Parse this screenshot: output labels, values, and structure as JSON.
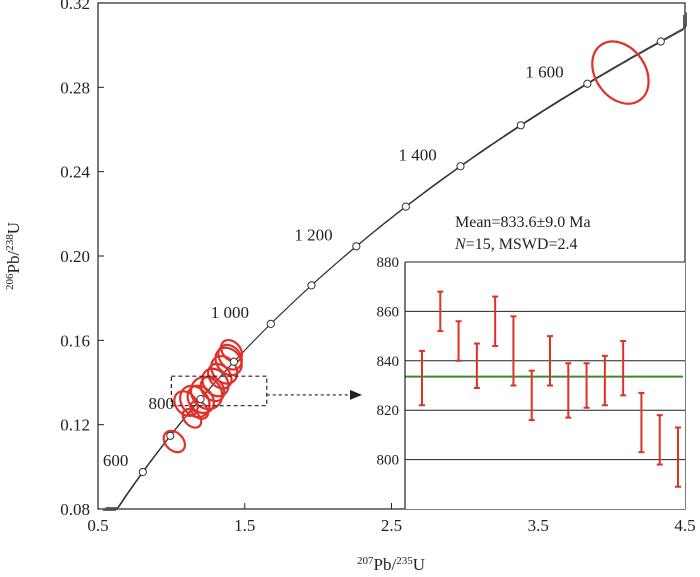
{
  "chart_data": {
    "type": "concordia",
    "main": {
      "xlabel": {
        "sup": "207",
        "base": "Pb/",
        "sup2": "235",
        "base2": "U"
      },
      "ylabel": {
        "sup": "206",
        "base": "Pb/",
        "sup2": "238",
        "base2": "U"
      },
      "xlim": [
        0.5,
        4.5
      ],
      "ylim": [
        0.08,
        0.32
      ],
      "xticks": [
        0.5,
        1.5,
        2.5,
        3.5,
        4.5
      ],
      "xtick_labels": [
        "0.5",
        "1.5",
        "2.5",
        "3.5",
        "4.5"
      ],
      "yticks": [
        0.08,
        0.12,
        0.16,
        0.2,
        0.24,
        0.28,
        0.32
      ],
      "ytick_labels": [
        "0.08",
        "0.12",
        "0.16",
        "0.20",
        "0.24",
        "0.28",
        "0.32"
      ],
      "concordia_markers": [
        {
          "age": 600,
          "label": "600"
        },
        {
          "age": 700,
          "label": ""
        },
        {
          "age": 800,
          "label": "800"
        },
        {
          "age": 900,
          "label": ""
        },
        {
          "age": 1000,
          "label": "1 000"
        },
        {
          "age": 1100,
          "label": ""
        },
        {
          "age": 1200,
          "label": "1 200"
        },
        {
          "age": 1300,
          "label": ""
        },
        {
          "age": 1400,
          "label": "1 400"
        },
        {
          "age": 1500,
          "label": ""
        },
        {
          "age": 1600,
          "label": "1 600"
        },
        {
          "age": 1700,
          "label": ""
        }
      ],
      "ellipses": [
        {
          "x": 4.06,
          "y": 0.287,
          "rx": 0.17,
          "ry": 0.005,
          "angle": 35
        },
        {
          "x": 1.02,
          "y": 0.112,
          "rx": 0.06,
          "ry": 0.0018,
          "angle": 45
        },
        {
          "x": 1.14,
          "y": 0.123,
          "rx": 0.05,
          "ry": 0.0016,
          "angle": 45
        },
        {
          "x": 1.1,
          "y": 0.13,
          "rx": 0.07,
          "ry": 0.002,
          "angle": 40
        },
        {
          "x": 1.16,
          "y": 0.131,
          "rx": 0.09,
          "ry": 0.0025,
          "angle": 38
        },
        {
          "x": 1.2,
          "y": 0.132,
          "rx": 0.08,
          "ry": 0.0022,
          "angle": 40
        },
        {
          "x": 1.24,
          "y": 0.135,
          "rx": 0.1,
          "ry": 0.0025,
          "angle": 38
        },
        {
          "x": 1.28,
          "y": 0.137,
          "rx": 0.07,
          "ry": 0.002,
          "angle": 40
        },
        {
          "x": 1.3,
          "y": 0.14,
          "rx": 0.08,
          "ry": 0.0022,
          "angle": 38
        },
        {
          "x": 1.33,
          "y": 0.143,
          "rx": 0.07,
          "ry": 0.002,
          "angle": 40
        },
        {
          "x": 1.36,
          "y": 0.146,
          "rx": 0.08,
          "ry": 0.0022,
          "angle": 38
        },
        {
          "x": 1.39,
          "y": 0.15,
          "rx": 0.08,
          "ry": 0.0022,
          "angle": 40
        },
        {
          "x": 1.4,
          "y": 0.152,
          "rx": 0.07,
          "ry": 0.002,
          "angle": 40
        },
        {
          "x": 1.41,
          "y": 0.155,
          "rx": 0.06,
          "ry": 0.0018,
          "angle": 42
        },
        {
          "x": 1.19,
          "y": 0.127,
          "rx": 0.05,
          "ry": 0.0015,
          "angle": 45
        }
      ],
      "zoom_box": {
        "x0": 1.0,
        "x1": 1.65,
        "y0": 0.129,
        "y1": 0.143
      }
    },
    "inset": {
      "ylim": [
        780,
        880
      ],
      "yticks": [
        800,
        820,
        840,
        860,
        880
      ],
      "ytick_labels": [
        "800",
        "820",
        "840",
        "860",
        "880"
      ],
      "mean_line": 833.6,
      "mean_text": "Mean=833.6±9.0 Ma",
      "stats_text_n": "N",
      "stats_text_rest": "=15, MSWD=2.4",
      "values": [
        833,
        860,
        848,
        838,
        856,
        844,
        826,
        840,
        828,
        830,
        832,
        837,
        815,
        808,
        801
      ],
      "errors": [
        11,
        8,
        8,
        9,
        10,
        14,
        10,
        10,
        11,
        9,
        10,
        11,
        12,
        10,
        12
      ]
    }
  }
}
